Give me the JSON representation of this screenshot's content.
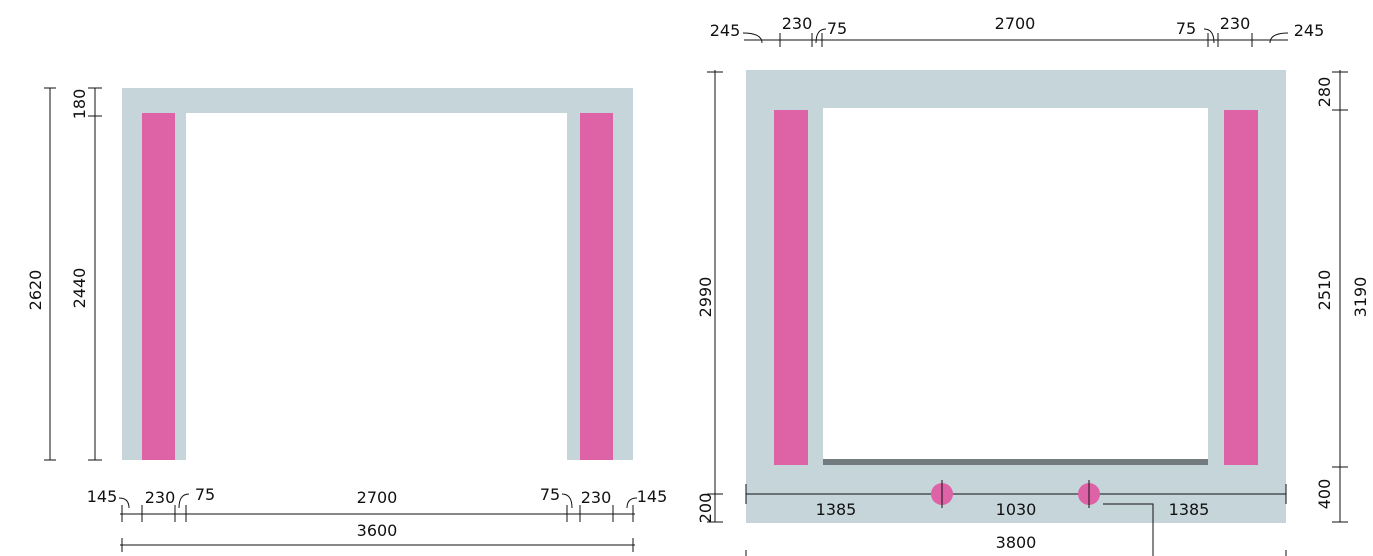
{
  "colors": {
    "wall": "#c5d5da",
    "post": "#dd62a6",
    "sill": "#737a7e",
    "line": "#111111"
  },
  "left_elevation": {
    "bottom_dims": [
      "145",
      "230",
      "75",
      "2700",
      "75",
      "230",
      "145"
    ],
    "overall_width": "3600",
    "left_dims": {
      "top": "180",
      "middle": "2440",
      "overall": "2620"
    }
  },
  "right_elevation": {
    "top_dims": [
      "245",
      "230",
      "75",
      "2700",
      "75",
      "230",
      "245"
    ],
    "left_dims": {
      "overall": "2990",
      "bottom": "200"
    },
    "right_dims": {
      "top": "280",
      "middle": "2510",
      "bottom": "400",
      "overall": "3190"
    },
    "base_dims": [
      "1385",
      "1030",
      "1385"
    ],
    "overall_width": "3800"
  }
}
